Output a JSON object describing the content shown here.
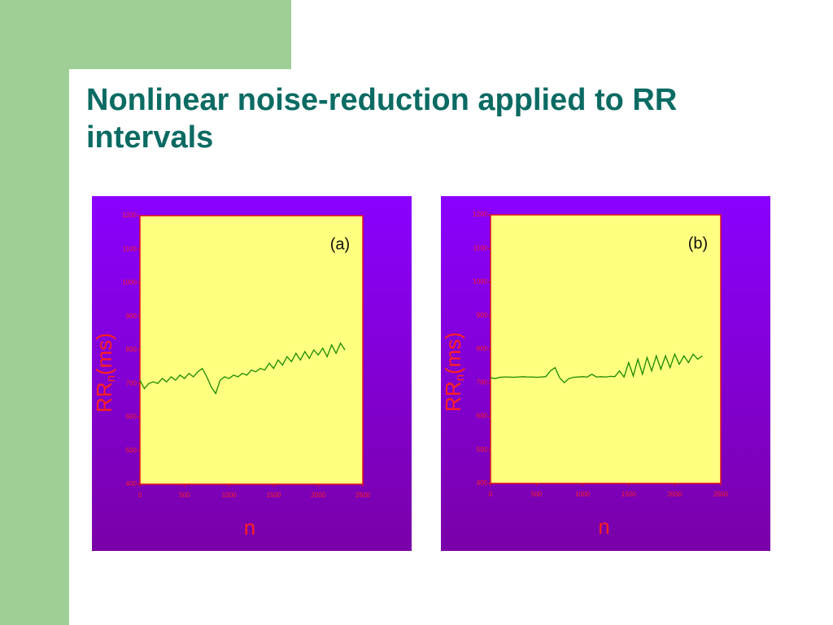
{
  "title": "Nonlinear noise-reduction applied to RR intervals",
  "chart_data": [
    {
      "type": "line",
      "annotation": "(a)",
      "xlabel": "n",
      "ylabel": [
        "RR",
        "n",
        "(ms)"
      ],
      "xlim": [
        0,
        2500
      ],
      "xticks": [
        0,
        500,
        1000,
        1500,
        2000,
        2500
      ],
      "ylim": [
        400,
        1200
      ],
      "yticks": [
        400,
        500,
        600,
        700,
        800,
        900,
        1000,
        1100,
        1200
      ],
      "x": [
        0,
        50,
        100,
        150,
        200,
        250,
        300,
        350,
        400,
        450,
        500,
        550,
        600,
        650,
        700,
        750,
        800,
        850,
        900,
        950,
        1000,
        1050,
        1100,
        1150,
        1200,
        1250,
        1300,
        1350,
        1400,
        1450,
        1500,
        1550,
        1600,
        1650,
        1700,
        1750,
        1800,
        1850,
        1900,
        1950,
        2000,
        2050,
        2100,
        2150,
        2200,
        2250,
        2300
      ],
      "series": [
        {
          "color": "#1a8a00",
          "values": [
            710,
            685,
            700,
            705,
            700,
            715,
            705,
            720,
            710,
            725,
            715,
            730,
            720,
            735,
            745,
            720,
            690,
            670,
            710,
            720,
            715,
            725,
            720,
            730,
            725,
            740,
            735,
            745,
            740,
            760,
            745,
            770,
            755,
            780,
            765,
            790,
            770,
            795,
            775,
            800,
            785,
            805,
            780,
            815,
            790,
            820,
            800
          ]
        }
      ]
    },
    {
      "type": "line",
      "annotation": "(b)",
      "xlabel": "n",
      "ylabel": [
        "RR",
        "n",
        "(ms)"
      ],
      "xlim": [
        0,
        2500
      ],
      "xticks": [
        0,
        500,
        1000,
        1500,
        2000,
        2500
      ],
      "ylim": [
        400,
        1200
      ],
      "yticks": [
        400,
        500,
        600,
        700,
        800,
        900,
        1000,
        1100,
        1200
      ],
      "x": [
        0,
        50,
        100,
        150,
        200,
        250,
        300,
        350,
        400,
        450,
        500,
        550,
        600,
        650,
        700,
        750,
        800,
        850,
        900,
        950,
        1000,
        1050,
        1100,
        1150,
        1200,
        1250,
        1300,
        1350,
        1400,
        1450,
        1500,
        1550,
        1600,
        1650,
        1700,
        1750,
        1800,
        1850,
        1900,
        1950,
        2000,
        2050,
        2100,
        2150,
        2200,
        2250,
        2300
      ],
      "series": [
        {
          "color": "#1a8a00",
          "values": [
            715,
            712,
            716,
            717,
            717,
            716,
            717,
            718,
            717,
            717,
            716,
            717,
            718,
            735,
            745,
            715,
            700,
            712,
            716,
            717,
            718,
            717,
            725,
            717,
            718,
            717,
            719,
            718,
            735,
            717,
            760,
            720,
            770,
            725,
            775,
            735,
            780,
            740,
            780,
            745,
            785,
            755,
            780,
            760,
            785,
            770,
            780
          ]
        }
      ]
    }
  ]
}
